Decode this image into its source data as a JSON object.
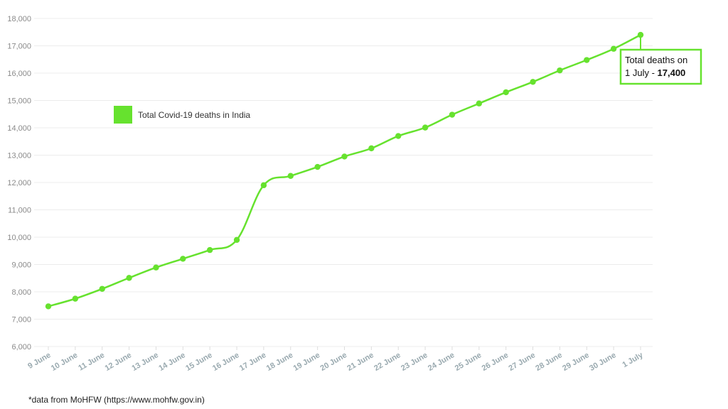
{
  "chart_data": {
    "type": "line",
    "title": "",
    "xlabel": "",
    "ylabel": "",
    "ylim": [
      6000,
      18000
    ],
    "yticks": [
      6000,
      7000,
      8000,
      9000,
      10000,
      11000,
      12000,
      13000,
      14000,
      15000,
      16000,
      17000,
      18000
    ],
    "ytick_labels": [
      "6,000",
      "7,000",
      "8,000",
      "9,000",
      "10,000",
      "11,000",
      "12,000",
      "13,000",
      "14,000",
      "15,000",
      "16,000",
      "17,000",
      "18,000"
    ],
    "categories": [
      "9 June",
      "10 June",
      "11 June",
      "12 June",
      "13 June",
      "14 June",
      "15 June",
      "16 June",
      "17 June",
      "18 June",
      "19 June",
      "20 June",
      "21 June",
      "22 June",
      "23 June",
      "24 June",
      "25 June",
      "26 June",
      "27 June",
      "28 June",
      "29 June",
      "30 June",
      "1 July"
    ],
    "series": [
      {
        "name": "Total Covid-19 deaths in India",
        "color": "#66e22e",
        "values": [
          7470,
          7750,
          8110,
          8510,
          8890,
          9210,
          9530,
          9900,
          11900,
          12240,
          12570,
          12950,
          13250,
          13700,
          14010,
          14480,
          14890,
          15300,
          15680,
          16100,
          16480,
          16890,
          17400
        ]
      }
    ],
    "grid": true,
    "legend": "top-left",
    "annotation": {
      "line1": "Total deaths on",
      "line2_prefix": "1 July - ",
      "line2_bold": "17,400",
      "border_color": "#66e22e"
    }
  },
  "footnote": "*data from MoHFW (https://www.mohfw.gov.in)"
}
